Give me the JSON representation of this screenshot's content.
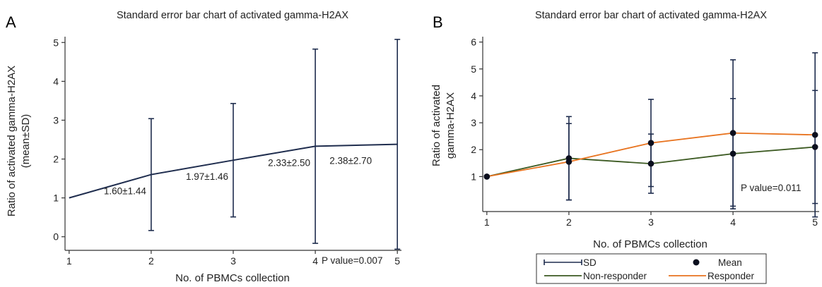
{
  "colors": {
    "navy": "#1f2d4e",
    "responder": "#e8731f",
    "non_responder": "#3c5a22",
    "axis": "#333333"
  },
  "chart_data": [
    {
      "panel": "A",
      "type": "line",
      "title": "Standard error bar chart of activated gamma-H2AX",
      "xlabel": "No. of PBMCs collection",
      "ylabel_lines": [
        "Ratio of activated gamma-H2AX",
        "(mean±SD)"
      ],
      "x": [
        1,
        2,
        3,
        4,
        5
      ],
      "xlim": [
        0.95,
        5.05
      ],
      "ylim": [
        -0.35,
        5.15
      ],
      "yticks": [
        0,
        1,
        2,
        3,
        4,
        5
      ],
      "series": [
        {
          "mean": [
            1,
            1.6,
            1.97,
            2.33,
            2.38
          ],
          "sd": [
            null,
            1.44,
            1.46,
            2.5,
            2.7
          ],
          "data_labels": [
            "",
            "1.60±1.44",
            "1.97±1.46",
            "2.33±2.50",
            "2.38±2.70"
          ]
        }
      ],
      "annotation": "P value=0.007"
    },
    {
      "panel": "B",
      "type": "line",
      "title": "Standard error bar chart of activated gamma-H2AX",
      "xlabel": "No. of PBMCs collection",
      "ylabel_lines": [
        "Ratio of activated",
        "gamma-H2AX"
      ],
      "x": [
        1,
        2,
        3,
        4,
        5
      ],
      "xlim": [
        0.95,
        5.05
      ],
      "ylim": [
        -0.3,
        6.2
      ],
      "yticks": [
        1,
        2,
        3,
        4,
        5,
        6
      ],
      "series": [
        {
          "name": "Non-responder",
          "mean": [
            1,
            1.68,
            1.48,
            1.85,
            2.1
          ],
          "sd": [
            null,
            1.55,
            1.1,
            2.05,
            2.1
          ]
        },
        {
          "name": "Responder",
          "mean": [
            1,
            1.55,
            2.25,
            2.62,
            2.55
          ],
          "sd": [
            null,
            1.42,
            1.62,
            2.72,
            3.05
          ]
        }
      ],
      "legend": [
        "SD",
        "Mean",
        "Non-responder",
        "Responder"
      ],
      "legend_position": "bottom",
      "annotation": "P value=0.011"
    }
  ]
}
